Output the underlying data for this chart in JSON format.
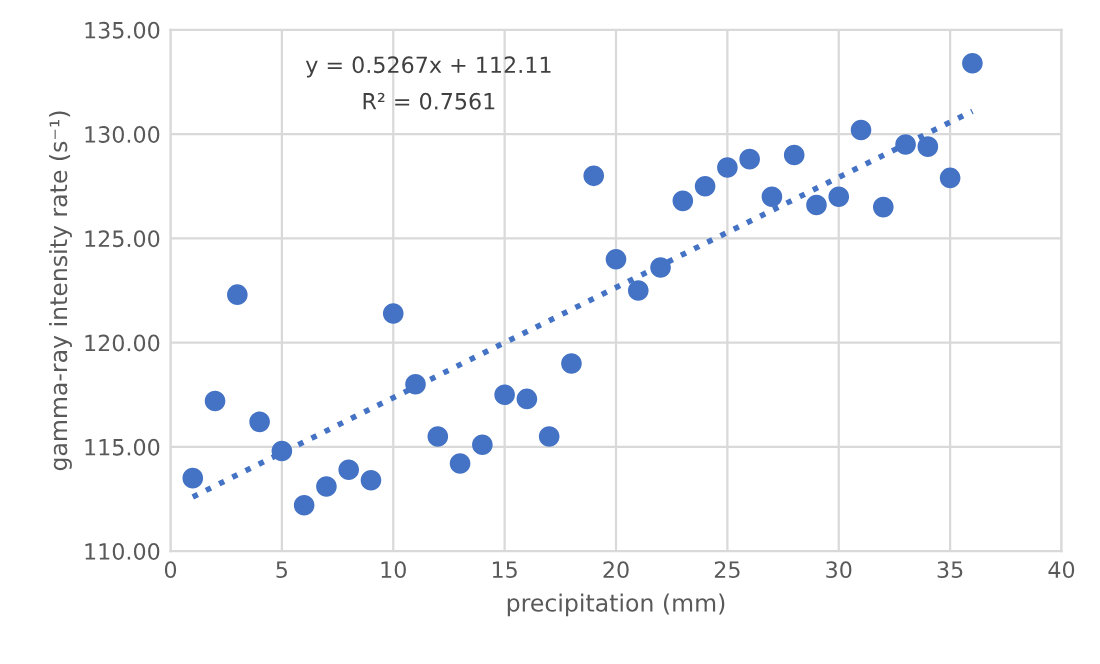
{
  "chart_data": {
    "type": "scatter",
    "xlabel": "precipitation (mm)",
    "ylabel": "gamma-ray intensity rate (s⁻¹)",
    "annotations": [
      "y = 0.5267x + 112.11",
      "R² = 0.7561"
    ],
    "xlim": [
      0,
      40
    ],
    "xticks": [
      0,
      5,
      10,
      15,
      20,
      25,
      30,
      35,
      40
    ],
    "ylim": [
      110,
      135
    ],
    "yticks": [
      {
        "value": 110,
        "label": "110.00"
      },
      {
        "value": 115,
        "label": "115.00"
      },
      {
        "value": 120,
        "label": "120.00"
      },
      {
        "value": 125,
        "label": "125.00"
      },
      {
        "value": 130,
        "label": "130.00"
      },
      {
        "value": 135,
        "label": "135.00"
      }
    ],
    "grid": true,
    "legend": false,
    "series": [
      {
        "color": "#4472c4",
        "marker": "circle",
        "x": [
          1,
          2,
          3,
          4,
          5,
          6,
          7,
          8,
          9,
          10,
          11,
          12,
          13,
          14,
          15,
          16,
          17,
          18,
          19,
          20,
          21,
          22,
          23,
          24,
          25,
          26,
          27,
          28,
          29,
          30,
          31,
          32,
          33,
          34,
          35,
          36
        ],
        "values": [
          113.5,
          117.2,
          122.3,
          116.2,
          114.8,
          112.2,
          113.1,
          113.9,
          113.4,
          121.4,
          118.0,
          115.5,
          114.2,
          115.1,
          117.5,
          117.3,
          115.5,
          119.0,
          128.0,
          124.0,
          122.5,
          123.6,
          126.8,
          127.5,
          128.4,
          128.8,
          127.0,
          129.0,
          126.6,
          127.0,
          130.2,
          126.5,
          129.5,
          129.4,
          127.9,
          133.4
        ]
      },
      {
        "type": "line",
        "color": "#4472c4",
        "line_style": "dotted",
        "marker": "none",
        "x": [
          1,
          36
        ],
        "values": [
          112.6,
          131.1
        ]
      }
    ]
  }
}
